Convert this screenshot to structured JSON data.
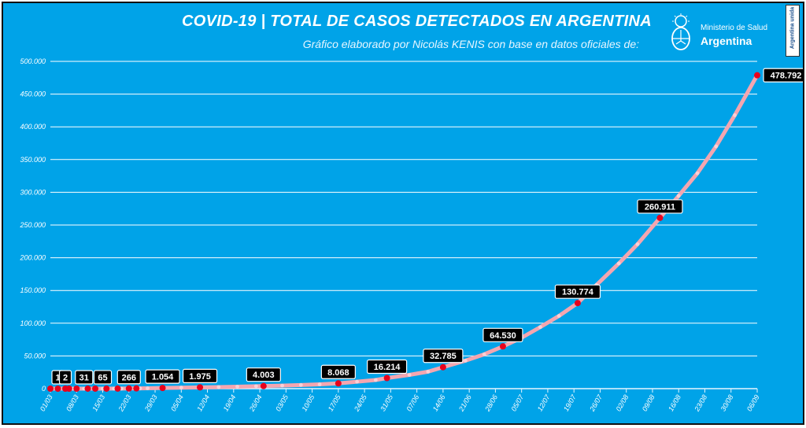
{
  "header": {
    "title": "COVID-19  |  TOTAL DE CASOS DETECTADOS EN ARGENTINA",
    "subtitle": "Gráfico elaborado por Nicolás KENIS con base en datos oficiales de:"
  },
  "ministry": {
    "line1": "Ministerio de Salud",
    "line2": "Argentina",
    "unida_text": "Argentina unida"
  },
  "colors": {
    "background": "#00a3e8",
    "line": "#f4a6b0",
    "marker": "#e8001c",
    "label_box": "#000000",
    "grid": "#ffffff"
  },
  "chart_data": {
    "type": "line",
    "title": "COVID-19  |  TOTAL DE CASOS DETECTADOS EN ARGENTINA",
    "xlabel": "",
    "ylabel": "",
    "ylim": [
      0,
      500000
    ],
    "grid": true,
    "legend": "none",
    "x_ticks": [
      "01/03",
      "08/03",
      "15/03",
      "22/03",
      "29/03",
      "05/04",
      "12/04",
      "19/04",
      "26/04",
      "03/05",
      "10/05",
      "17/05",
      "24/05",
      "31/05",
      "07/06",
      "14/06",
      "21/06",
      "28/06",
      "05/07",
      "12/07",
      "19/07",
      "26/07",
      "02/08",
      "09/08",
      "16/08",
      "23/08",
      "30/08",
      "06/09"
    ],
    "y_ticks": [
      "0",
      "50.000",
      "100.000",
      "150.000",
      "200.000",
      "250.000",
      "300.000",
      "350.000",
      "400.000",
      "450.000",
      "500.000"
    ],
    "x_domain": [
      "01/03",
      "06/09"
    ],
    "series": [
      {
        "points": [
          {
            "x": "01/03",
            "y": 0
          },
          {
            "x": "03/03",
            "y": 1
          },
          {
            "x": "05/03",
            "y": 2
          },
          {
            "x": "07/03",
            "y": 12
          },
          {
            "x": "10/03",
            "y": 31
          },
          {
            "x": "13/03",
            "y": 34
          },
          {
            "x": "15/03",
            "y": 65
          },
          {
            "x": "18/03",
            "y": 97
          },
          {
            "x": "20/03",
            "y": 128
          },
          {
            "x": "22/03",
            "y": 266
          },
          {
            "x": "25/03",
            "y": 387
          },
          {
            "x": "27/03",
            "y": 589
          },
          {
            "x": "31/03",
            "y": 1054
          },
          {
            "x": "05/04",
            "y": 1554
          },
          {
            "x": "10/04",
            "y": 1975
          },
          {
            "x": "15/04",
            "y": 2443
          },
          {
            "x": "20/04",
            "y": 3031
          },
          {
            "x": "25/04",
            "y": 3780
          },
          {
            "x": "27/04",
            "y": 4003
          },
          {
            "x": "02/05",
            "y": 4680
          },
          {
            "x": "07/05",
            "y": 5611
          },
          {
            "x": "12/05",
            "y": 6563
          },
          {
            "x": "17/05",
            "y": 8068
          },
          {
            "x": "22/05",
            "y": 10649
          },
          {
            "x": "27/05",
            "y": 13228
          },
          {
            "x": "30/05",
            "y": 16214
          },
          {
            "x": "05/06",
            "y": 21037
          },
          {
            "x": "10/06",
            "y": 25987
          },
          {
            "x": "14/06",
            "y": 32785
          },
          {
            "x": "20/06",
            "y": 42785
          },
          {
            "x": "25/06",
            "y": 52457
          },
          {
            "x": "30/06",
            "y": 64530
          },
          {
            "x": "05/07",
            "y": 77815
          },
          {
            "x": "10/07",
            "y": 94060
          },
          {
            "x": "15/07",
            "y": 111160
          },
          {
            "x": "20/07",
            "y": 130774
          },
          {
            "x": "25/07",
            "y": 158334
          },
          {
            "x": "31/07",
            "y": 191302
          },
          {
            "x": "05/08",
            "y": 220682
          },
          {
            "x": "11/08",
            "y": 260911
          },
          {
            "x": "16/08",
            "y": 294569
          },
          {
            "x": "21/08",
            "y": 329043
          },
          {
            "x": "26/08",
            "y": 370188
          },
          {
            "x": "31/08",
            "y": 417735
          },
          {
            "x": "06/09",
            "y": 478792
          }
        ]
      }
    ],
    "labeled_points": [
      {
        "x": "03/03",
        "y": 1,
        "label": "1"
      },
      {
        "x": "05/03",
        "y": 2,
        "label": "2"
      },
      {
        "x": "10/03",
        "y": 31,
        "label": "31"
      },
      {
        "x": "15/03",
        "y": 65,
        "label": "65"
      },
      {
        "x": "22/03",
        "y": 266,
        "label": "266"
      },
      {
        "x": "31/03",
        "y": 1054,
        "label": "1.054"
      },
      {
        "x": "10/04",
        "y": 1975,
        "label": "1.975"
      },
      {
        "x": "27/04",
        "y": 4003,
        "label": "4.003"
      },
      {
        "x": "17/05",
        "y": 8068,
        "label": "8.068"
      },
      {
        "x": "30/05",
        "y": 16214,
        "label": "16.214"
      },
      {
        "x": "14/06",
        "y": 32785,
        "label": "32.785"
      },
      {
        "x": "30/06",
        "y": 64530,
        "label": "64.530"
      },
      {
        "x": "20/07",
        "y": 130774,
        "label": "130.774"
      },
      {
        "x": "11/08",
        "y": 260911,
        "label": "260.911"
      },
      {
        "x": "06/09",
        "y": 478792,
        "label": "478.792"
      }
    ],
    "red_markers": [
      {
        "x": "01/03",
        "y": 0
      },
      {
        "x": "03/03",
        "y": 1
      },
      {
        "x": "05/03",
        "y": 2
      },
      {
        "x": "06/03",
        "y": 8
      },
      {
        "x": "08/03",
        "y": 12
      },
      {
        "x": "11/03",
        "y": 31
      },
      {
        "x": "13/03",
        "y": 34
      },
      {
        "x": "16/03",
        "y": 65
      },
      {
        "x": "19/03",
        "y": 128
      },
      {
        "x": "22/03",
        "y": 266
      },
      {
        "x": "24/03",
        "y": 387
      },
      {
        "x": "31/03",
        "y": 1054
      },
      {
        "x": "10/04",
        "y": 1975
      },
      {
        "x": "27/04",
        "y": 4003
      },
      {
        "x": "17/05",
        "y": 8068
      },
      {
        "x": "30/05",
        "y": 16214
      },
      {
        "x": "14/06",
        "y": 32785
      },
      {
        "x": "30/06",
        "y": 64530
      },
      {
        "x": "20/07",
        "y": 130774
      },
      {
        "x": "11/08",
        "y": 260911
      },
      {
        "x": "06/09",
        "y": 478792
      }
    ]
  }
}
